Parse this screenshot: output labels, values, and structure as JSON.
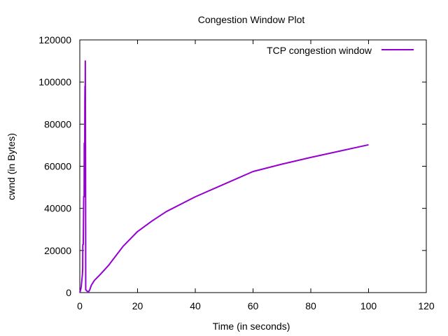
{
  "chart_data": {
    "type": "line",
    "title": "Congestion Window Plot",
    "xlabel": "Time (in seconds)",
    "ylabel": "cwnd (in Bytes)",
    "xlim": [
      0,
      120
    ],
    "ylim": [
      0,
      120000
    ],
    "xticks": [
      "0",
      "20",
      "40",
      "60",
      "80",
      "100",
      "120"
    ],
    "yticks": [
      "0",
      "20000",
      "40000",
      "60000",
      "80000",
      "100000",
      "120000"
    ],
    "grid": false,
    "legend_position": "top-right",
    "series": [
      {
        "name": "TCP congestion window",
        "color": "#9400d3",
        "points": [
          [
            0.0,
            0
          ],
          [
            0.3,
            1400
          ],
          [
            0.5,
            2900
          ],
          [
            0.7,
            5700
          ],
          [
            0.9,
            8600
          ],
          [
            1.0,
            11400
          ],
          [
            1.05,
            22800
          ],
          [
            1.2,
            22800
          ],
          [
            1.35,
            45600
          ],
          [
            1.5,
            45600
          ],
          [
            1.55,
            71000
          ],
          [
            1.65,
            45600
          ],
          [
            1.75,
            91000
          ],
          [
            1.8,
            98000
          ],
          [
            1.85,
            70000
          ],
          [
            1.9,
            110000
          ],
          [
            2.0,
            60000
          ],
          [
            2.05,
            1400
          ],
          [
            2.5,
            700
          ],
          [
            3.0,
            300
          ],
          [
            3.5,
            1500
          ],
          [
            4.0,
            3500
          ],
          [
            5.0,
            5700
          ],
          [
            7.0,
            8500
          ],
          [
            10.0,
            13000
          ],
          [
            15.0,
            22000
          ],
          [
            20.0,
            29000
          ],
          [
            25.0,
            34000
          ],
          [
            30.0,
            38500
          ],
          [
            40.0,
            45500
          ],
          [
            50.0,
            51500
          ],
          [
            60.0,
            57500
          ],
          [
            70.0,
            61000
          ],
          [
            80.0,
            64200
          ],
          [
            90.0,
            67200
          ],
          [
            100.0,
            70200
          ]
        ]
      }
    ]
  }
}
